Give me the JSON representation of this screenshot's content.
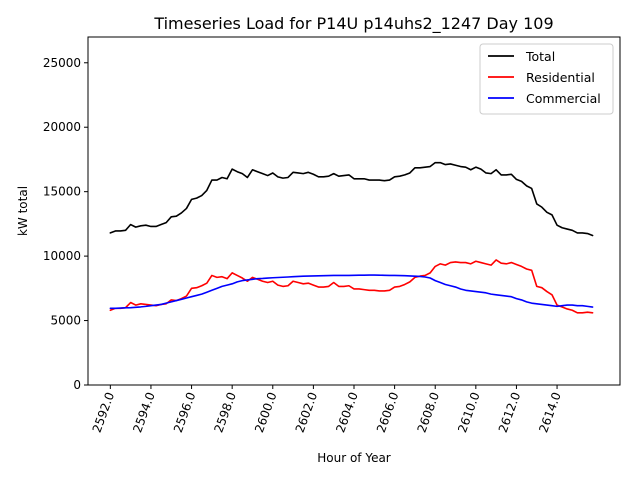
{
  "chart_data": {
    "type": "line",
    "title": "Timeseries Load for P14U p14uhs2_1247  Day 109",
    "xlabel": "Hour of Year",
    "ylabel": "kW total",
    "xlim": [
      2590.9,
      2617.1
    ],
    "ylim": [
      0,
      27000
    ],
    "xticks": [
      2592,
      2594,
      2596,
      2598,
      2600,
      2602,
      2604,
      2606,
      2608,
      2610,
      2612,
      2614
    ],
    "xtick_labels": [
      "2592.0",
      "2594.0",
      "2596.0",
      "2598.0",
      "2600.0",
      "2602.0",
      "2604.0",
      "2606.0",
      "2608.0",
      "2610.0",
      "2612.0",
      "2614.0"
    ],
    "yticks": [
      0,
      5000,
      10000,
      15000,
      20000,
      25000
    ],
    "ytick_labels": [
      "0",
      "5000",
      "10000",
      "15000",
      "20000",
      "25000"
    ],
    "grid": false,
    "legend_position": "top-right",
    "x_start": 2592,
    "x_step": 0.25,
    "series": [
      {
        "name": "Total",
        "color": "#000000",
        "values": [
          11800,
          11950,
          11950,
          12000,
          12450,
          12250,
          12350,
          12400,
          12300,
          12300,
          12450,
          12600,
          13050,
          13100,
          13350,
          13700,
          14400,
          14500,
          14700,
          15100,
          15900,
          15900,
          16100,
          16000,
          16750,
          16550,
          16400,
          16100,
          16700,
          16550,
          16400,
          16250,
          16450,
          16150,
          16050,
          16100,
          16500,
          16450,
          16400,
          16500,
          16350,
          16150,
          16150,
          16200,
          16400,
          16200,
          16250,
          16300,
          16000,
          16000,
          16000,
          15900,
          15900,
          15900,
          15850,
          15900,
          16150,
          16200,
          16300,
          16450,
          16850,
          16850,
          16900,
          16950,
          17250,
          17250,
          17100,
          17150,
          17050,
          16950,
          16900,
          16700,
          16900,
          16750,
          16450,
          16400,
          16700,
          16300,
          16300,
          16350,
          15950,
          15800,
          15450,
          15250,
          14050,
          13800,
          13400,
          13200,
          12400,
          12200,
          12100,
          12000,
          11800,
          11800,
          11750,
          11600
        ]
      },
      {
        "name": "Residential",
        "color": "#ff0000",
        "values": [
          5800,
          5950,
          5950,
          6000,
          6400,
          6200,
          6300,
          6250,
          6200,
          6150,
          6250,
          6300,
          6600,
          6550,
          6700,
          6900,
          7500,
          7550,
          7700,
          7900,
          8500,
          8350,
          8400,
          8250,
          8700,
          8500,
          8300,
          8050,
          8350,
          8200,
          8050,
          7950,
          8050,
          7750,
          7650,
          7700,
          8050,
          7950,
          7850,
          7900,
          7750,
          7600,
          7600,
          7650,
          7950,
          7650,
          7650,
          7700,
          7450,
          7450,
          7400,
          7350,
          7350,
          7300,
          7300,
          7350,
          7600,
          7650,
          7800,
          8000,
          8350,
          8450,
          8500,
          8700,
          9200,
          9400,
          9300,
          9500,
          9550,
          9500,
          9500,
          9400,
          9600,
          9500,
          9400,
          9300,
          9700,
          9450,
          9400,
          9500,
          9350,
          9200,
          9000,
          8900,
          7650,
          7550,
          7250,
          7000,
          6200,
          6050,
          5900,
          5800,
          5600,
          5600,
          5650,
          5600
        ]
      },
      {
        "name": "Commercial",
        "color": "#0000ff",
        "values": [
          5950,
          5950,
          5970,
          5990,
          6000,
          6030,
          6060,
          6100,
          6150,
          6200,
          6250,
          6350,
          6450,
          6550,
          6650,
          6750,
          6850,
          6950,
          7050,
          7200,
          7350,
          7500,
          7650,
          7750,
          7850,
          8000,
          8100,
          8150,
          8200,
          8250,
          8270,
          8300,
          8320,
          8340,
          8360,
          8380,
          8400,
          8420,
          8440,
          8450,
          8460,
          8470,
          8480,
          8490,
          8500,
          8500,
          8500,
          8500,
          8510,
          8520,
          8520,
          8530,
          8530,
          8520,
          8510,
          8500,
          8500,
          8490,
          8480,
          8460,
          8440,
          8420,
          8380,
          8300,
          8100,
          7950,
          7800,
          7700,
          7600,
          7450,
          7350,
          7300,
          7250,
          7200,
          7150,
          7050,
          7000,
          6950,
          6900,
          6850,
          6700,
          6600,
          6450,
          6350,
          6300,
          6250,
          6200,
          6150,
          6100,
          6150,
          6200,
          6200,
          6150,
          6150,
          6100,
          6050
        ]
      }
    ]
  }
}
